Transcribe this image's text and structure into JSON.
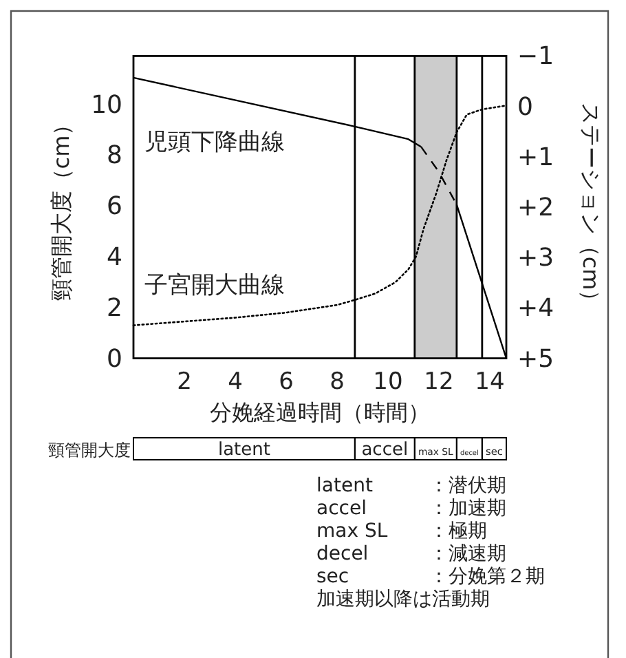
{
  "chart_data": {
    "type": "line",
    "xlabel": "分娩経過時間（時間）",
    "ylabel": "頸管開大度（cm）",
    "y2label": "ステーション（cm）",
    "xlim": [
      0,
      14.65
    ],
    "xticks": [
      2,
      4,
      6,
      8,
      10,
      12,
      14
    ],
    "ylim": [
      0,
      11.9
    ],
    "yticks": [
      0,
      2,
      4,
      6,
      8,
      10
    ],
    "y2lim": [
      5,
      -1
    ],
    "y2ticks": [
      {
        "value": -1,
        "label": "−1"
      },
      0,
      {
        "value": 1,
        "label": "+1"
      },
      {
        "value": 2,
        "label": "+2"
      },
      {
        "value": 3,
        "label": "+3"
      },
      {
        "value": 4,
        "label": "+4"
      },
      {
        "value": 5,
        "label": "+5"
      }
    ],
    "series": [
      {
        "name": "子宮開大曲線",
        "color": "#000000",
        "line_style": "dotted",
        "x": [
          0,
          2,
          4,
          6,
          8,
          8.7,
          9.5,
          10.3,
          10.8,
          11.1,
          11.4,
          11.9,
          12.3,
          12.7,
          13.1,
          13.7,
          14.65
        ],
        "values": [
          1.3,
          1.45,
          1.6,
          1.8,
          2.1,
          2.3,
          2.55,
          3.0,
          3.5,
          4.0,
          5.1,
          6.5,
          7.8,
          8.9,
          9.6,
          9.8,
          9.95
        ]
      },
      {
        "name": "児頭下降曲線",
        "color": "#000000",
        "line_style": "solid",
        "axis": "y2",
        "x": [
          0,
          8.7,
          10.8,
          11.3
        ],
        "values": [
          -0.57,
          0.4,
          0.65,
          0.8
        ]
      },
      {
        "color": "#000000",
        "line_style": "dashed",
        "axis": "y2",
        "x": [
          11.3,
          12.0,
          12.7
        ],
        "values": [
          0.8,
          1.3,
          1.95
        ]
      },
      {
        "color": "#000000",
        "line_style": "solid",
        "axis": "y2",
        "x": [
          12.7,
          14.65
        ],
        "values": [
          1.95,
          5
        ]
      }
    ],
    "ref_lines": [
      {
        "axis": "x",
        "value": 8.7,
        "color": "#000000"
      },
      {
        "axis": "x",
        "value": 11.05,
        "color": "#000000"
      },
      {
        "axis": "x",
        "value": 12.7,
        "color": "#000000"
      },
      {
        "axis": "x",
        "value": 13.7,
        "color": "#000000"
      }
    ],
    "bands": [
      {
        "axis": "x",
        "from": 11.05,
        "to": 12.7,
        "color": "#cccccc"
      }
    ],
    "grid": false,
    "marker": "none",
    "annotations": [
      "頸管開大度",
      "latent",
      "accel",
      "max SL",
      "decel",
      "sec",
      "latent ：潜伏期",
      "accel ：加速期",
      "max SL ：極期",
      "decel ：減速期",
      "sec ：分娩第２期",
      "加速期以降は活動期"
    ]
  }
}
